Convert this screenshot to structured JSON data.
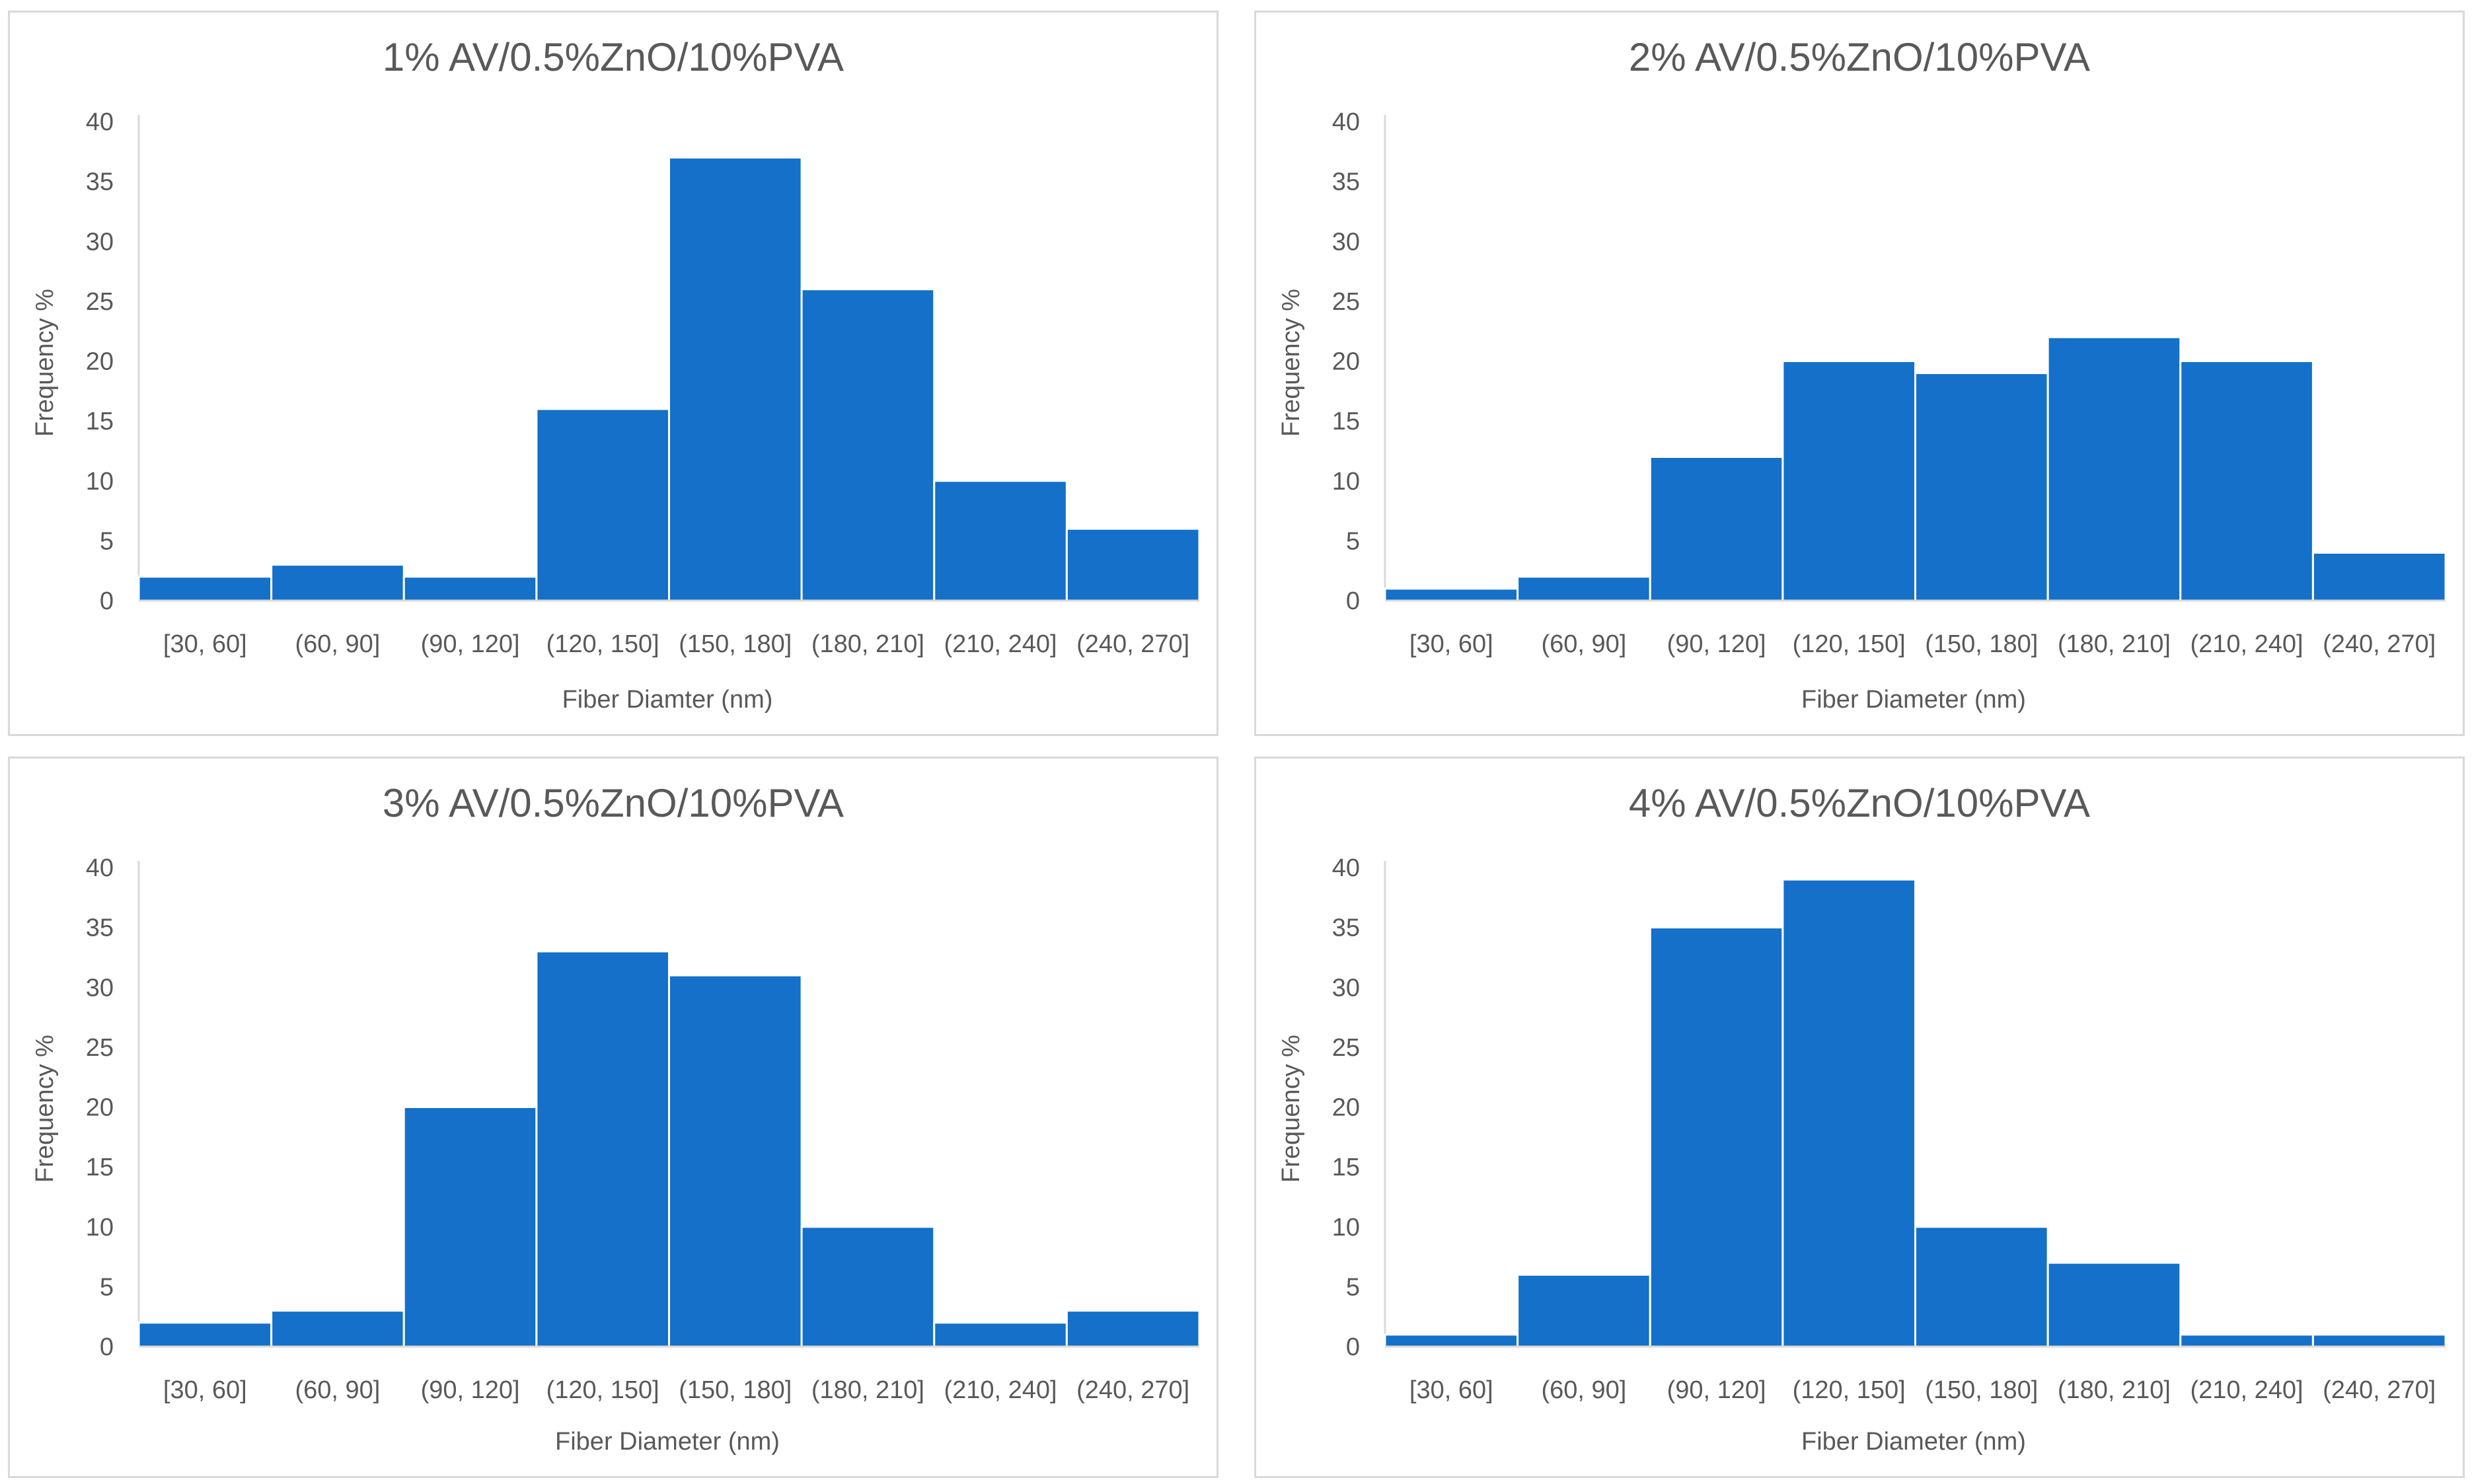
{
  "colors": {
    "bar": "#1470c8",
    "text": "#595959",
    "axis": "#d9d9d9"
  },
  "chart_data": [
    {
      "type": "bar",
      "title": "1% AV/0.5%ZnO/10%PVA",
      "xlabel": "Fiber Diamter (nm)",
      "ylabel": "Frequency %",
      "categories": [
        "[30, 60]",
        "(60, 90]",
        "(90, 120]",
        "(120, 150]",
        "(150, 180]",
        "(180, 210]",
        "(210, 240]",
        "(240, 270]"
      ],
      "values": [
        2,
        3,
        2,
        16,
        37,
        26,
        10,
        6
      ],
      "yticks": [
        "0",
        "5",
        "10",
        "15",
        "20",
        "25",
        "30",
        "35",
        "40"
      ],
      "ylim": [
        0,
        40
      ],
      "grid": false
    },
    {
      "type": "bar",
      "title": "2% AV/0.5%ZnO/10%PVA",
      "xlabel": "Fiber Diameter (nm)",
      "ylabel": "Frequency %",
      "categories": [
        "[30, 60]",
        "(60, 90]",
        "(90, 120]",
        "(120, 150]",
        "(150, 180]",
        "(180, 210]",
        "(210, 240]",
        "(240, 270]"
      ],
      "values": [
        1,
        2,
        12,
        20,
        19,
        22,
        20,
        4
      ],
      "yticks": [
        "0",
        "5",
        "10",
        "15",
        "20",
        "25",
        "30",
        "35",
        "40"
      ],
      "ylim": [
        0,
        40
      ],
      "grid": false
    },
    {
      "type": "bar",
      "title": "3% AV/0.5%ZnO/10%PVA",
      "xlabel": "Fiber Diameter (nm)",
      "ylabel": "Frequency %",
      "categories": [
        "[30, 60]",
        "(60, 90]",
        "(90, 120]",
        "(120, 150]",
        "(150, 180]",
        "(180, 210]",
        "(210, 240]",
        "(240, 270]"
      ],
      "values": [
        2,
        3,
        20,
        33,
        31,
        10,
        2,
        3
      ],
      "yticks": [
        "0",
        "5",
        "10",
        "15",
        "20",
        "25",
        "30",
        "35",
        "40"
      ],
      "ylim": [
        0,
        40
      ],
      "grid": false
    },
    {
      "type": "bar",
      "title": "4% AV/0.5%ZnO/10%PVA",
      "xlabel": "Fiber Diameter (nm)",
      "ylabel": "Frequency %",
      "categories": [
        "[30, 60]",
        "(60, 90]",
        "(90, 120]",
        "(120, 150]",
        "(150, 180]",
        "(180, 210]",
        "(210, 240]",
        "(240, 270]"
      ],
      "values": [
        1,
        6,
        35,
        39,
        10,
        7,
        1,
        1
      ],
      "yticks": [
        "0",
        "5",
        "10",
        "15",
        "20",
        "25",
        "30",
        "35",
        "40"
      ],
      "ylim": [
        0,
        40
      ],
      "grid": false
    }
  ]
}
